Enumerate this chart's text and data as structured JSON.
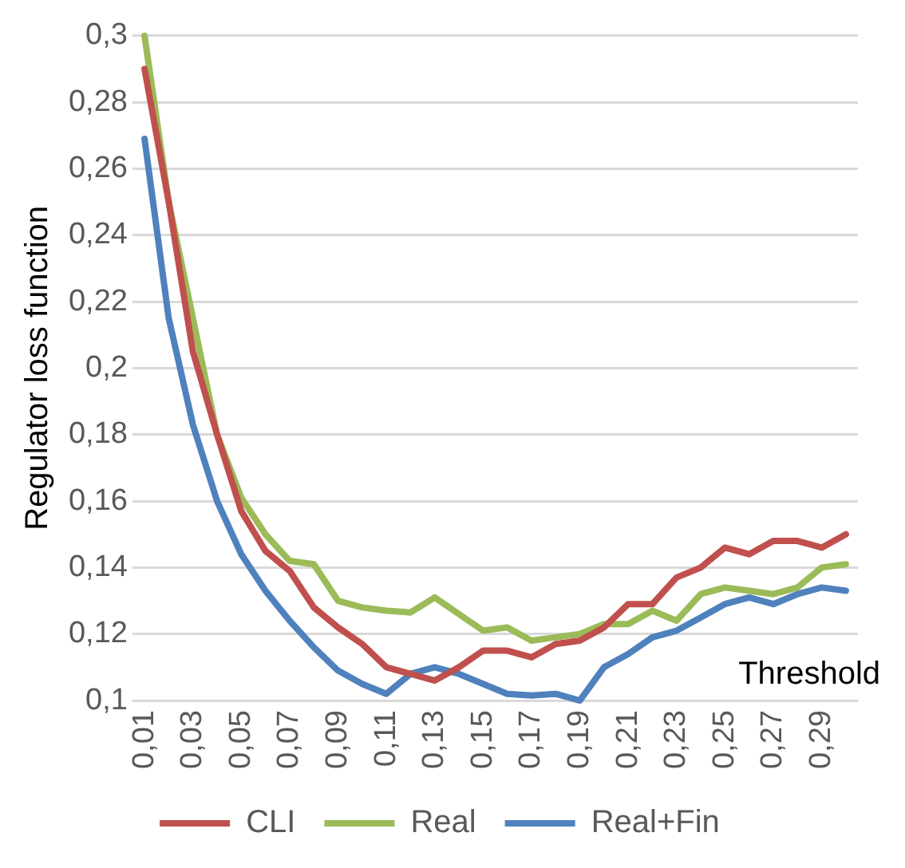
{
  "chart_data": {
    "type": "line",
    "ylabel": "Regulator loss function",
    "xlabel": "Threshold",
    "categories": [
      "0,01",
      null,
      "0,03",
      null,
      "0,05",
      null,
      "0,07",
      null,
      "0,09",
      null,
      "0,11",
      null,
      "0,13",
      null,
      "0,15",
      null,
      "0,17",
      null,
      "0,19",
      null,
      "0,21",
      null,
      "0,23",
      null,
      "0,25",
      null,
      "0,27",
      null,
      "0,29",
      null
    ],
    "series": [
      {
        "name": "CLI",
        "color": "#c0504d",
        "values": [
          0.29,
          0.25,
          0.205,
          0.18,
          0.157,
          0.145,
          0.139,
          0.128,
          0.122,
          0.117,
          0.11,
          0.108,
          0.106,
          0.11,
          0.115,
          0.115,
          0.113,
          0.117,
          0.118,
          0.122,
          0.129,
          0.129,
          0.137,
          0.14,
          0.146,
          0.144,
          0.148,
          0.148,
          0.146,
          0.15
        ]
      },
      {
        "name": "Real",
        "color": "#9bbb59",
        "values": [
          0.3,
          0.25,
          0.215,
          0.18,
          0.161,
          0.15,
          0.142,
          0.141,
          0.13,
          0.128,
          0.127,
          0.1265,
          0.131,
          0.126,
          0.121,
          0.122,
          0.118,
          0.119,
          0.12,
          0.123,
          0.123,
          0.127,
          0.124,
          0.132,
          0.134,
          0.133,
          0.132,
          0.134,
          0.14,
          0.141
        ]
      },
      {
        "name": "Real+Fin",
        "color": "#4f81bd",
        "values": [
          0.269,
          0.215,
          0.183,
          0.16,
          0.144,
          0.133,
          0.124,
          0.116,
          0.109,
          0.105,
          0.102,
          0.108,
          0.11,
          0.108,
          0.105,
          0.102,
          0.1015,
          0.102,
          0.1,
          0.11,
          0.114,
          0.119,
          0.121,
          0.125,
          0.129,
          0.131,
          0.129,
          0.132,
          0.134,
          0.133
        ]
      }
    ],
    "ylim": [
      0.1,
      0.3
    ],
    "yticks": [
      {
        "value": 0.1,
        "label": "0,1"
      },
      {
        "value": 0.12,
        "label": "0,12"
      },
      {
        "value": 0.14,
        "label": "0,14"
      },
      {
        "value": 0.16,
        "label": "0,16"
      },
      {
        "value": 0.18,
        "label": "0,18"
      },
      {
        "value": 0.2,
        "label": "0,2"
      },
      {
        "value": 0.22,
        "label": "0,22"
      },
      {
        "value": 0.24,
        "label": "0,24"
      },
      {
        "value": 0.26,
        "label": "0,26"
      },
      {
        "value": 0.28,
        "label": "0,28"
      },
      {
        "value": 0.3,
        "label": "0,3"
      }
    ],
    "grid": "y",
    "legend": "bottom",
    "marker": "none",
    "line_style": "solid"
  }
}
